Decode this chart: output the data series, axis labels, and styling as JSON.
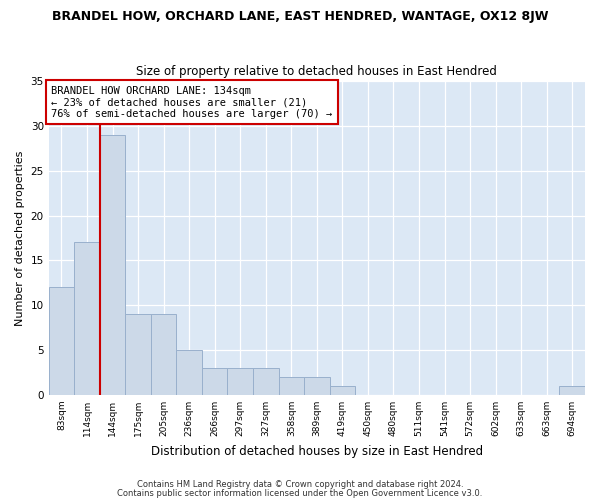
{
  "title": "BRANDEL HOW, ORCHARD LANE, EAST HENDRED, WANTAGE, OX12 8JW",
  "subtitle": "Size of property relative to detached houses in East Hendred",
  "xlabel": "Distribution of detached houses by size in East Hendred",
  "ylabel": "Number of detached properties",
  "bin_labels": [
    "83sqm",
    "114sqm",
    "144sqm",
    "175sqm",
    "205sqm",
    "236sqm",
    "266sqm",
    "297sqm",
    "327sqm",
    "358sqm",
    "389sqm",
    "419sqm",
    "450sqm",
    "480sqm",
    "511sqm",
    "541sqm",
    "572sqm",
    "602sqm",
    "633sqm",
    "663sqm",
    "694sqm"
  ],
  "bar_values": [
    12,
    17,
    29,
    9,
    9,
    5,
    3,
    3,
    3,
    2,
    2,
    1,
    0,
    0,
    0,
    0,
    0,
    0,
    0,
    0,
    1
  ],
  "bar_color": "#ccd9e8",
  "bar_edge_color": "#99b0cc",
  "vline_color": "#cc0000",
  "annotation_text": "BRANDEL HOW ORCHARD LANE: 134sqm\n← 23% of detached houses are smaller (21)\n76% of semi-detached houses are larger (70) →",
  "annotation_box_color": "#ffffff",
  "annotation_box_edge": "#cc0000",
  "ylim": [
    0,
    35
  ],
  "yticks": [
    0,
    5,
    10,
    15,
    20,
    25,
    30,
    35
  ],
  "footer1": "Contains HM Land Registry data © Crown copyright and database right 2024.",
  "footer2": "Contains public sector information licensed under the Open Government Licence v3.0.",
  "plot_bg_color": "#dce8f5",
  "fig_bg_color": "#ffffff"
}
